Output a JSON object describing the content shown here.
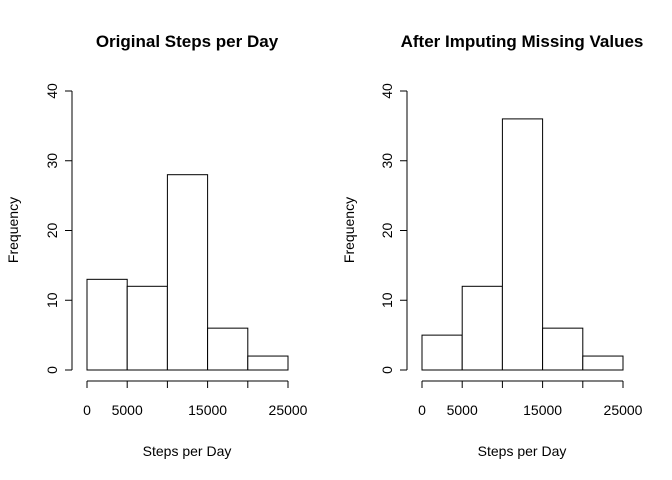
{
  "chart_data": [
    {
      "type": "bar",
      "title": "Original Steps per Day",
      "xlabel": "Steps per Day",
      "ylabel": "Frequency",
      "bins": [
        [
          0,
          5000
        ],
        [
          5000,
          10000
        ],
        [
          10000,
          15000
        ],
        [
          15000,
          20000
        ],
        [
          20000,
          25000
        ]
      ],
      "values": [
        13,
        12,
        28,
        6,
        2
      ],
      "xlim": [
        0,
        25000
      ],
      "ylim": [
        0,
        40
      ],
      "xticks": [
        0,
        5000,
        15000,
        25000
      ],
      "xtick_labels": [
        "0",
        "5000",
        "15000",
        "25000"
      ],
      "yticks": [
        0,
        10,
        20,
        30,
        40
      ],
      "ytick_labels": [
        "0",
        "10",
        "20",
        "30",
        "40"
      ],
      "grid": false
    },
    {
      "type": "bar",
      "title": "After Imputing Missing Values",
      "xlabel": "Steps per Day",
      "ylabel": "Frequency",
      "bins": [
        [
          0,
          5000
        ],
        [
          5000,
          10000
        ],
        [
          10000,
          15000
        ],
        [
          15000,
          20000
        ],
        [
          20000,
          25000
        ]
      ],
      "values": [
        5,
        12,
        36,
        6,
        2
      ],
      "xlim": [
        0,
        25000
      ],
      "ylim": [
        0,
        40
      ],
      "xticks": [
        0,
        5000,
        15000,
        25000
      ],
      "xtick_labels": [
        "0",
        "5000",
        "15000",
        "25000"
      ],
      "yticks": [
        0,
        10,
        20,
        30,
        40
      ],
      "ytick_labels": [
        "0",
        "10",
        "20",
        "30",
        "40"
      ],
      "grid": false
    }
  ]
}
